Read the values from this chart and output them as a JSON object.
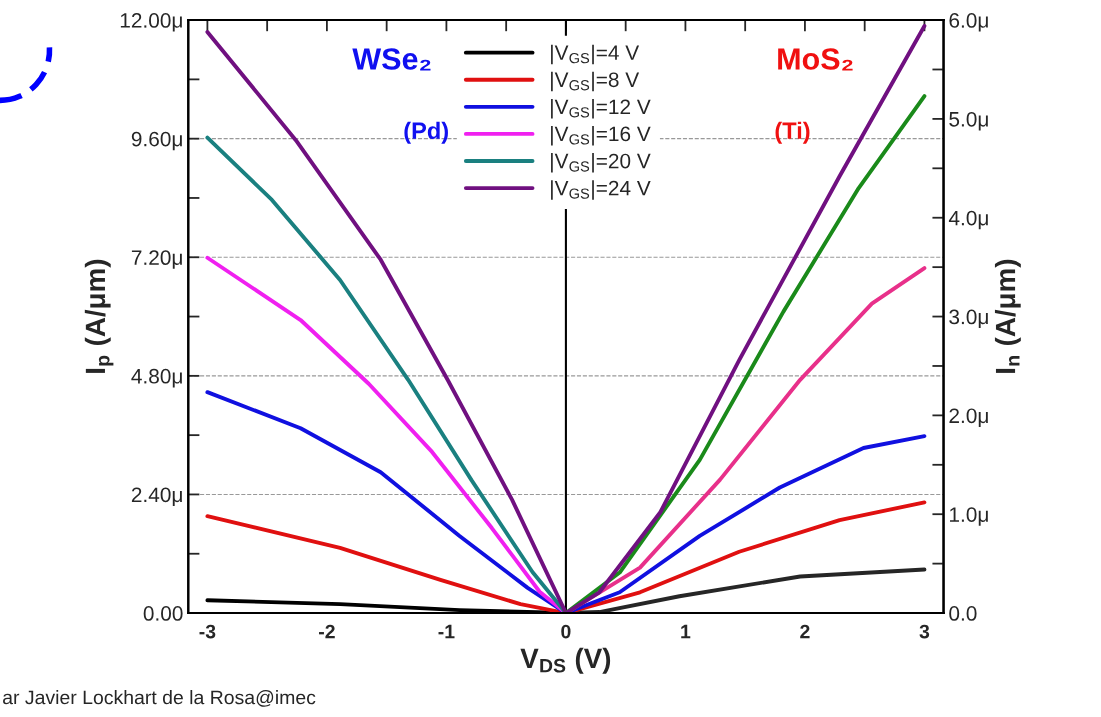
{
  "chart_data": {
    "type": "line",
    "xlabel": "V$_{DS}$ (V)",
    "ylabel": "I$_{p}$ (A/μm)",
    "y2label": "I$_{n}$ (A/μm)",
    "xlim": [
      -3.16,
      3.16
    ],
    "xticks": [
      -3,
      {
        "value": -2.5,
        "label": null
      },
      -2,
      {
        "value": -1.5,
        "label": null
      },
      -1,
      {
        "value": -0.5,
        "label": null
      },
      0,
      {
        "value": 0.5,
        "label": null
      },
      1,
      {
        "value": 1.5,
        "label": null
      },
      2,
      {
        "value": 2.5,
        "label": null
      },
      3
    ],
    "ylim": [
      0,
      12
    ],
    "yticks": [
      {
        "value": 0,
        "label": "0.00"
      },
      {
        "value": 1.2,
        "label": null
      },
      {
        "value": 2.4,
        "label": "2.40μ"
      },
      {
        "value": 3.6,
        "label": null
      },
      {
        "value": 4.8,
        "label": "4.80μ"
      },
      {
        "value": 6.0,
        "label": null
      },
      {
        "value": 7.2,
        "label": "7.20μ"
      },
      {
        "value": 8.4,
        "label": null
      },
      {
        "value": 9.6,
        "label": "9.60μ"
      },
      {
        "value": 10.8,
        "label": null
      },
      {
        "value": 12,
        "label": "12.00μ"
      }
    ],
    "y2lim": [
      0,
      6
    ],
    "y2ticks": [
      {
        "value": 0,
        "label": "0.0"
      },
      {
        "value": 0.5,
        "label": null
      },
      {
        "value": 1,
        "label": "1.0μ"
      },
      {
        "value": 1.5,
        "label": null
      },
      {
        "value": 2,
        "label": "2.0μ"
      },
      {
        "value": 2.5,
        "label": null
      },
      {
        "value": 3,
        "label": "3.0μ"
      },
      {
        "value": 3.5,
        "label": null
      },
      {
        "value": 4,
        "label": "4.0μ"
      },
      {
        "value": 4.5,
        "label": null
      },
      {
        "value": 5,
        "label": "5.0μ"
      },
      {
        "value": 5.5,
        "label": null
      },
      {
        "value": 6,
        "label": "6.0μ"
      }
    ],
    "grid": "y",
    "legend": "top",
    "line_style": "solid",
    "marker": "none",
    "ref_lines": [
      {
        "axis": "x",
        "value": 0,
        "color": "#000000"
      }
    ],
    "annotations": [
      "WSe₂",
      "(Pd)",
      "MoS₂",
      "(Ti)",
      "ar Javier Lockhart de la Rosa@imec"
    ],
    "series": [
      {
        "name": "|V$_{GS}$|=4 V",
        "color": "#000000",
        "x": [
          -3,
          -1.89,
          -0.89,
          0
        ],
        "values": [
          0.26,
          0.18,
          0.06,
          0
        ]
      },
      {
        "name": "|V$_{GS}$|=8 V",
        "color": "#e01010",
        "x": [
          -3,
          -1.89,
          -1.05,
          -0.38,
          0
        ],
        "values": [
          1.96,
          1.32,
          0.67,
          0.18,
          0
        ]
      },
      {
        "name": "|V$_{GS}$|=12 V",
        "color": "#1010e0",
        "x": [
          -3,
          -2.22,
          -1.55,
          -0.89,
          -0.32,
          0
        ],
        "values": [
          4.47,
          3.74,
          2.85,
          1.56,
          0.51,
          0
        ]
      },
      {
        "name": "|V$_{GS}$|=16 V",
        "color": "#f020f0",
        "x": [
          -3,
          -2.22,
          -1.65,
          -1.12,
          -0.62,
          -0.22,
          0
        ],
        "values": [
          7.19,
          5.93,
          4.64,
          3.26,
          1.72,
          0.43,
          0
        ]
      },
      {
        "name": "|V$_{GS}$|=20 V",
        "color": "#1a8080",
        "x": [
          -3,
          -2.46,
          -1.89,
          -1.32,
          -0.79,
          -0.28,
          0
        ],
        "values": [
          9.62,
          8.36,
          6.74,
          4.72,
          2.69,
          0.83,
          0
        ]
      },
      {
        "name": "|V$_{GS}$|=24 V",
        "color": "#701080",
        "x": [
          -3,
          -2.26,
          -1.55,
          -0.99,
          -0.45,
          0
        ],
        "values": [
          11.76,
          9.57,
          7.15,
          4.72,
          2.29,
          0
        ]
      },
      {
        "axis": "y2",
        "color": "#262626",
        "x": [
          0,
          0.28,
          0.95,
          1.96,
          3
        ],
        "values": [
          0,
          0.01,
          0.17,
          0.37,
          0.44
        ]
      },
      {
        "axis": "y2",
        "color": "#e01010",
        "x": [
          0,
          0.62,
          1.45,
          2.29,
          3
        ],
        "values": [
          0,
          0.21,
          0.62,
          0.94,
          1.12
        ]
      },
      {
        "axis": "y2",
        "color": "#1010e0",
        "x": [
          0,
          0.45,
          1.12,
          1.79,
          2.49,
          3
        ],
        "values": [
          0,
          0.21,
          0.78,
          1.27,
          1.67,
          1.79
        ]
      },
      {
        "axis": "y2",
        "color": "#e8308a",
        "x": [
          0,
          0.62,
          1.29,
          1.96,
          2.56,
          3
        ],
        "values": [
          0,
          0.46,
          1.35,
          2.36,
          3.13,
          3.49
        ]
      },
      {
        "axis": "y2",
        "color": "#1a8a1a",
        "x": [
          0,
          0.45,
          1.12,
          1.82,
          2.45,
          3
        ],
        "values": [
          0,
          0.41,
          1.55,
          3.05,
          4.3,
          5.23
        ]
      },
      {
        "axis": "y2",
        "color": "#701080",
        "x": [
          0,
          0.28,
          0.79,
          1.45,
          2.29,
          3
        ],
        "values": [
          0,
          0.21,
          1.02,
          2.56,
          4.42,
          5.94
        ]
      }
    ]
  }
}
